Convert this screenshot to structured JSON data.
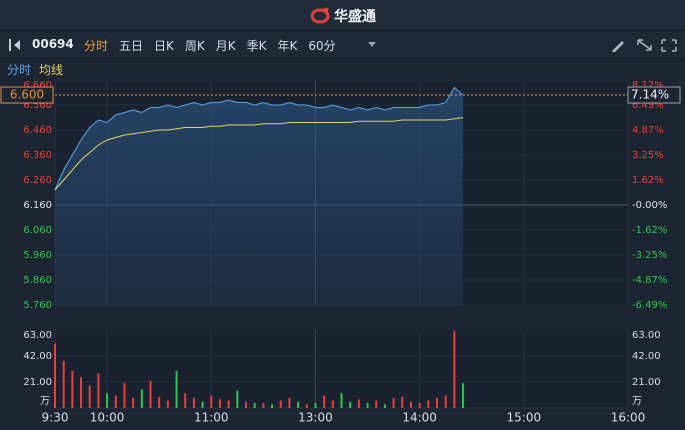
{
  "header": {
    "logo": "华盛通"
  },
  "toolbar": {
    "code": "00694",
    "tabs": [
      "分时",
      "五日",
      "日K",
      "周K",
      "月K",
      "季K",
      "年K",
      "60分"
    ],
    "active": 0
  },
  "chart_data": {
    "type": "line",
    "x": [
      0,
      5,
      10,
      15,
      20,
      25,
      30,
      35,
      40,
      45,
      50,
      55,
      60,
      65,
      70,
      75,
      80,
      85,
      90,
      95,
      100,
      105,
      110,
      115,
      120,
      125,
      130,
      135,
      140,
      145,
      150,
      155,
      160,
      165,
      170,
      175,
      180,
      185,
      190,
      195,
      200,
      205,
      210,
      215,
      220,
      225,
      230,
      235
    ],
    "series": [
      {
        "name": "分时",
        "color": "#5ea6ee",
        "values": [
          6.22,
          6.3,
          6.36,
          6.42,
          6.47,
          6.5,
          6.49,
          6.52,
          6.53,
          6.54,
          6.53,
          6.55,
          6.55,
          6.56,
          6.55,
          6.56,
          6.57,
          6.56,
          6.57,
          6.57,
          6.58,
          6.57,
          6.57,
          6.56,
          6.57,
          6.56,
          6.56,
          6.57,
          6.56,
          6.56,
          6.55,
          6.55,
          6.56,
          6.55,
          6.54,
          6.55,
          6.54,
          6.55,
          6.54,
          6.55,
          6.55,
          6.55,
          6.55,
          6.56,
          6.56,
          6.57,
          6.63,
          6.6
        ]
      },
      {
        "name": "均线",
        "color": "#e6d46a",
        "values": [
          6.22,
          6.26,
          6.3,
          6.34,
          6.37,
          6.4,
          6.42,
          6.43,
          6.44,
          6.445,
          6.45,
          6.455,
          6.46,
          6.46,
          6.465,
          6.47,
          6.47,
          6.47,
          6.475,
          6.475,
          6.48,
          6.48,
          6.48,
          6.48,
          6.485,
          6.485,
          6.485,
          6.49,
          6.49,
          6.49,
          6.49,
          6.49,
          6.49,
          6.49,
          6.49,
          6.495,
          6.495,
          6.495,
          6.495,
          6.495,
          6.5,
          6.5,
          6.5,
          6.5,
          6.5,
          6.5,
          6.505,
          6.51
        ]
      }
    ],
    "volume": {
      "values": [
        52,
        38,
        30,
        25,
        18,
        28,
        12,
        10,
        20,
        8,
        15,
        22,
        9,
        6,
        30,
        12,
        8,
        5,
        10,
        7,
        6,
        14,
        5,
        4,
        4,
        3,
        6,
        8,
        5,
        3,
        4,
        10,
        6,
        12,
        5,
        7,
        4,
        6,
        3,
        8,
        9,
        5,
        4,
        6,
        8,
        10,
        62,
        20
      ],
      "ylim": [
        0,
        63
      ],
      "yticks": [
        {
          "value": 21,
          "label": "21.00"
        },
        {
          "value": 42,
          "label": "42.00"
        },
        {
          "value": 63,
          "label": "63.00"
        }
      ],
      "unit": "万",
      "up_color": "#e8413c",
      "down_color": "#2fc650"
    },
    "xlim": [
      0,
      330
    ],
    "xticks": [
      {
        "value": 0,
        "label": "9:30"
      },
      {
        "value": 30,
        "label": "10:00"
      },
      {
        "value": 90,
        "label": "11:00"
      },
      {
        "value": 150,
        "label": "13:00"
      },
      {
        "value": 210,
        "label": "14:00"
      },
      {
        "value": 270,
        "label": "15:00"
      },
      {
        "value": 330,
        "label": "16:00"
      }
    ],
    "ylim": [
      5.76,
      6.66
    ],
    "yticks": [
      {
        "value": 5.76,
        "label": "5.760"
      },
      {
        "value": 5.86,
        "label": "5.860"
      },
      {
        "value": 5.96,
        "label": "5.960"
      },
      {
        "value": 6.06,
        "label": "6.060"
      },
      {
        "value": 6.16,
        "label": "6.160"
      },
      {
        "value": 6.26,
        "label": "6.260"
      },
      {
        "value": 6.36,
        "label": "6.360"
      },
      {
        "value": 6.46,
        "label": "6.460"
      },
      {
        "value": 6.56,
        "label": "6.560"
      },
      {
        "value": 6.66,
        "label": "6.660"
      }
    ],
    "y2lim": [
      -6.49,
      8.12
    ],
    "y2ticks": [
      {
        "value": -6.49,
        "label": "-6.49%"
      },
      {
        "value": -4.87,
        "label": "-4.87%"
      },
      {
        "value": -3.25,
        "label": "-3.25%"
      },
      {
        "value": -1.62,
        "label": "-1.62%"
      },
      {
        "value": 0,
        "label": "-0.00%"
      },
      {
        "value": 1.62,
        "label": "1.62%"
      },
      {
        "value": 3.25,
        "label": "3.25%"
      },
      {
        "value": 4.87,
        "label": "4.87%"
      },
      {
        "value": 6.49,
        "label": "6.49%"
      },
      {
        "value": 8.12,
        "label": "8.12%"
      }
    ],
    "last_price": {
      "value": 6.6,
      "label": "6.600"
    },
    "last_change": {
      "value": 7.14,
      "label": "7.14%"
    },
    "grid": true
  }
}
